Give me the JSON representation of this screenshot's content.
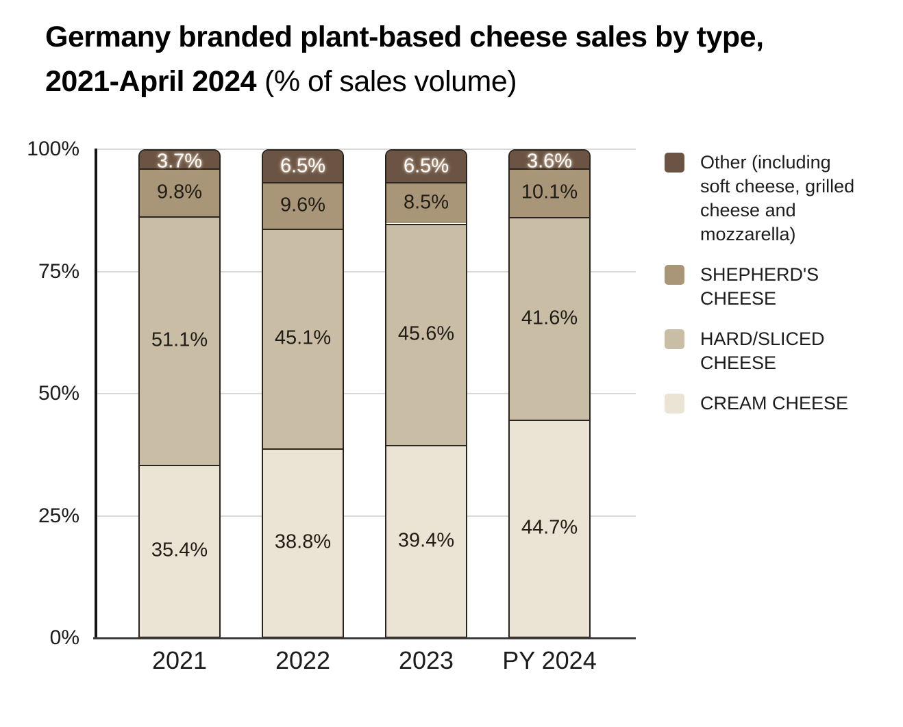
{
  "title": {
    "line1_bold": "Germany branded plant-based cheese sales by type,",
    "line2_bold": "2021-April 2024",
    "line2_regular": "(% of sales volume)"
  },
  "chart_data": {
    "type": "bar",
    "stacked": true,
    "title": "Germany branded plant-based cheese sales by type, 2021-April 2024 (% of sales volume)",
    "categories": [
      "2021",
      "2022",
      "2023",
      "PY 2024"
    ],
    "series": [
      {
        "name": "Other (including soft cheese, grilled cheese and mozzarella)",
        "legend_lines": [
          "Other (including",
          "soft cheese, grilled",
          "cheese and",
          "mozzarella)"
        ],
        "color": "#6B5444",
        "label_color": "#FFFFFF",
        "values": [
          3.7,
          6.5,
          6.5,
          3.6
        ]
      },
      {
        "name": "SHEPHERD'S CHEESE",
        "legend_lines": [
          "SHEPHERD'S",
          "CHEESE"
        ],
        "color": "#A99678",
        "label_color": "#201C16",
        "values": [
          9.8,
          9.6,
          8.5,
          10.1
        ]
      },
      {
        "name": "HARD/SLICED CHEESE",
        "legend_lines": [
          "HARD/SLICED",
          "CHEESE"
        ],
        "color": "#C9BDA6",
        "label_color": "#201C16",
        "values": [
          51.1,
          45.1,
          45.6,
          41.6
        ]
      },
      {
        "name": "CREAM CHEESE",
        "legend_lines": [
          "CREAM CHEESE"
        ],
        "color": "#EBE3D3",
        "label_color": "#201C16",
        "values": [
          35.4,
          38.8,
          39.4,
          44.7
        ]
      }
    ],
    "y_ticks": [
      "0%",
      "25%",
      "50%",
      "75%",
      "100%"
    ],
    "ylim": [
      0,
      100
    ],
    "value_suffix": "%",
    "grid": true,
    "legend_position": "right",
    "outline_color": "#29241E",
    "gridline_color": "#D8D8D8",
    "axis_color": "#141414"
  }
}
